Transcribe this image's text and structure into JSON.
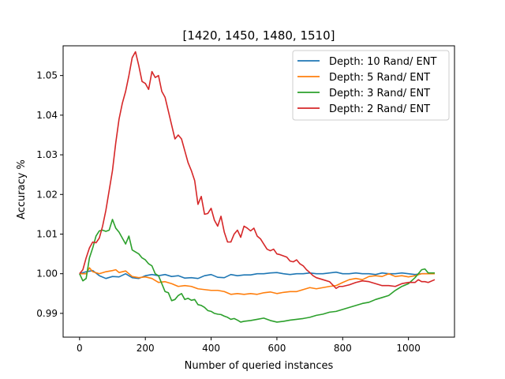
{
  "chart_data": {
    "type": "line",
    "title": "[1420, 1450, 1480, 1510]",
    "xlabel": "Number of queried instances",
    "ylabel": "Accuracy %",
    "xlim": [
      -50,
      1140
    ],
    "ylim": [
      0.984,
      1.0575
    ],
    "xticks": [
      0,
      200,
      400,
      600,
      800,
      1000
    ],
    "yticks": [
      0.99,
      1.0,
      1.01,
      1.02,
      1.03,
      1.04,
      1.05
    ],
    "ytick_labels": [
      "0.99",
      "1.00",
      "1.01",
      "1.02",
      "1.03",
      "1.04",
      "1.05"
    ],
    "grid": false,
    "legend_position": "top-right",
    "series": [
      {
        "name": "Depth: 10 Rand/ ENT",
        "color": "#1f77b4",
        "points": [
          [
            0,
            1.0
          ],
          [
            20,
            1.0005
          ],
          [
            40,
            1.0008
          ],
          [
            60,
            0.9995
          ],
          [
            80,
            0.9988
          ],
          [
            100,
            0.9993
          ],
          [
            120,
            0.9992
          ],
          [
            140,
            1.0
          ],
          [
            160,
            0.999
          ],
          [
            180,
            0.9988
          ],
          [
            200,
            0.9995
          ],
          [
            220,
            0.9998
          ],
          [
            240,
            0.9995
          ],
          [
            260,
            0.9998
          ],
          [
            280,
            0.9993
          ],
          [
            300,
            0.9995
          ],
          [
            320,
            0.9989
          ],
          [
            340,
            0.999
          ],
          [
            360,
            0.9988
          ],
          [
            380,
            0.9995
          ],
          [
            400,
            0.9998
          ],
          [
            420,
            0.9991
          ],
          [
            440,
            0.999
          ],
          [
            460,
            0.9998
          ],
          [
            480,
            0.9995
          ],
          [
            500,
            0.9997
          ],
          [
            520,
            0.9997
          ],
          [
            540,
            1.0
          ],
          [
            560,
            1.0
          ],
          [
            580,
            1.0002
          ],
          [
            600,
            1.0003
          ],
          [
            620,
            1.0
          ],
          [
            640,
            0.9998
          ],
          [
            660,
            1.0
          ],
          [
            680,
            1.0
          ],
          [
            700,
            1.0002
          ],
          [
            720,
            1.0
          ],
          [
            740,
            1.0
          ],
          [
            760,
            1.0002
          ],
          [
            780,
            1.0004
          ],
          [
            800,
            1.0
          ],
          [
            820,
            1.0
          ],
          [
            840,
            1.0002
          ],
          [
            860,
            1.0
          ],
          [
            880,
            1.0
          ],
          [
            900,
            0.9998
          ],
          [
            920,
            1.0002
          ],
          [
            940,
            1.0
          ],
          [
            960,
            1.0
          ],
          [
            980,
            1.0002
          ],
          [
            1000,
            1.0
          ],
          [
            1020,
            0.9998
          ],
          [
            1040,
            1.0
          ],
          [
            1060,
            1.0
          ],
          [
            1080,
            1.0
          ]
        ]
      },
      {
        "name": "Depth: 5 Rand/ ENT",
        "color": "#ff7f0e",
        "points": [
          [
            0,
            1.0
          ],
          [
            20,
            1.0
          ],
          [
            30,
            1.0015
          ],
          [
            40,
            1.0005
          ],
          [
            60,
            1.0
          ],
          [
            80,
            1.0005
          ],
          [
            100,
            1.0008
          ],
          [
            110,
            1.001
          ],
          [
            120,
            1.0003
          ],
          [
            140,
            1.0007
          ],
          [
            160,
            0.9993
          ],
          [
            180,
            0.999
          ],
          [
            200,
            0.9992
          ],
          [
            220,
            0.9988
          ],
          [
            240,
            0.9978
          ],
          [
            260,
            0.998
          ],
          [
            280,
            0.9975
          ],
          [
            300,
            0.9968
          ],
          [
            320,
            0.997
          ],
          [
            340,
            0.9968
          ],
          [
            360,
            0.9962
          ],
          [
            380,
            0.996
          ],
          [
            400,
            0.9958
          ],
          [
            420,
            0.9958
          ],
          [
            440,
            0.9955
          ],
          [
            460,
            0.9948
          ],
          [
            480,
            0.995
          ],
          [
            500,
            0.9948
          ],
          [
            520,
            0.995
          ],
          [
            540,
            0.9948
          ],
          [
            560,
            0.9952
          ],
          [
            580,
            0.9954
          ],
          [
            600,
            0.995
          ],
          [
            620,
            0.9953
          ],
          [
            640,
            0.9955
          ],
          [
            660,
            0.9955
          ],
          [
            680,
            0.996
          ],
          [
            700,
            0.9965
          ],
          [
            720,
            0.9962
          ],
          [
            740,
            0.9965
          ],
          [
            760,
            0.9968
          ],
          [
            780,
            0.997
          ],
          [
            800,
            0.9978
          ],
          [
            820,
            0.9985
          ],
          [
            840,
            0.9988
          ],
          [
            860,
            0.9985
          ],
          [
            880,
            0.9993
          ],
          [
            900,
            0.9995
          ],
          [
            920,
            0.9993
          ],
          [
            940,
            1.0
          ],
          [
            960,
            0.9993
          ],
          [
            980,
            0.9995
          ],
          [
            1000,
            0.9992
          ],
          [
            1020,
            0.9995
          ],
          [
            1040,
            1.0
          ],
          [
            1060,
            1.0
          ],
          [
            1080,
            1.0
          ]
        ]
      },
      {
        "name": "Depth: 3 Rand/ ENT",
        "color": "#2ca02c",
        "points": [
          [
            0,
            1.0
          ],
          [
            10,
            0.9982
          ],
          [
            20,
            0.9988
          ],
          [
            30,
            1.004
          ],
          [
            40,
            1.0065
          ],
          [
            50,
            1.0095
          ],
          [
            60,
            1.0108
          ],
          [
            70,
            1.011
          ],
          [
            80,
            1.0107
          ],
          [
            90,
            1.011
          ],
          [
            100,
            1.0137
          ],
          [
            110,
            1.0115
          ],
          [
            120,
            1.0105
          ],
          [
            130,
            1.009
          ],
          [
            140,
            1.0075
          ],
          [
            150,
            1.0095
          ],
          [
            160,
            1.006
          ],
          [
            170,
            1.0055
          ],
          [
            180,
            1.005
          ],
          [
            190,
            1.004
          ],
          [
            200,
            1.0035
          ],
          [
            210,
            1.0025
          ],
          [
            220,
            1.002
          ],
          [
            230,
            1.0
          ],
          [
            240,
            0.9995
          ],
          [
            250,
            0.9975
          ],
          [
            260,
            0.9955
          ],
          [
            270,
            0.9952
          ],
          [
            280,
            0.9932
          ],
          [
            290,
            0.9935
          ],
          [
            300,
            0.9945
          ],
          [
            310,
            0.995
          ],
          [
            320,
            0.9935
          ],
          [
            330,
            0.9938
          ],
          [
            340,
            0.9933
          ],
          [
            350,
            0.9935
          ],
          [
            360,
            0.9922
          ],
          [
            370,
            0.992
          ],
          [
            380,
            0.9915
          ],
          [
            390,
            0.9907
          ],
          [
            400,
            0.9905
          ],
          [
            410,
            0.99
          ],
          [
            420,
            0.9898
          ],
          [
            430,
            0.9897
          ],
          [
            440,
            0.9893
          ],
          [
            450,
            0.989
          ],
          [
            460,
            0.9885
          ],
          [
            470,
            0.9887
          ],
          [
            480,
            0.9883
          ],
          [
            490,
            0.9878
          ],
          [
            500,
            0.988
          ],
          [
            520,
            0.9882
          ],
          [
            540,
            0.9885
          ],
          [
            560,
            0.9888
          ],
          [
            580,
            0.9882
          ],
          [
            600,
            0.9878
          ],
          [
            620,
            0.988
          ],
          [
            640,
            0.9883
          ],
          [
            660,
            0.9885
          ],
          [
            680,
            0.9887
          ],
          [
            700,
            0.989
          ],
          [
            720,
            0.9895
          ],
          [
            740,
            0.9898
          ],
          [
            760,
            0.9903
          ],
          [
            780,
            0.9905
          ],
          [
            800,
            0.991
          ],
          [
            820,
            0.9915
          ],
          [
            840,
            0.992
          ],
          [
            860,
            0.9925
          ],
          [
            880,
            0.9928
          ],
          [
            900,
            0.9935
          ],
          [
            920,
            0.994
          ],
          [
            940,
            0.9945
          ],
          [
            960,
            0.9958
          ],
          [
            980,
            0.9968
          ],
          [
            1000,
            0.9975
          ],
          [
            1020,
            0.999
          ],
          [
            1040,
            1.001
          ],
          [
            1050,
            1.0012
          ],
          [
            1060,
            1.0002
          ],
          [
            1080,
            1.0002
          ]
        ]
      },
      {
        "name": "Depth: 2 Rand/ ENT",
        "color": "#d62728",
        "points": [
          [
            0,
            1.0
          ],
          [
            10,
            1.001
          ],
          [
            20,
            1.004
          ],
          [
            30,
            1.0065
          ],
          [
            40,
            1.008
          ],
          [
            50,
            1.0078
          ],
          [
            60,
            1.009
          ],
          [
            70,
            1.012
          ],
          [
            80,
            1.016
          ],
          [
            90,
            1.021
          ],
          [
            100,
            1.026
          ],
          [
            110,
            1.033
          ],
          [
            120,
            1.039
          ],
          [
            130,
            1.043
          ],
          [
            140,
            1.046
          ],
          [
            150,
            1.05
          ],
          [
            160,
            1.0545
          ],
          [
            170,
            1.056
          ],
          [
            180,
            1.0525
          ],
          [
            190,
            1.0485
          ],
          [
            200,
            1.048
          ],
          [
            210,
            1.0465
          ],
          [
            220,
            1.051
          ],
          [
            230,
            1.0495
          ],
          [
            240,
            1.05
          ],
          [
            250,
            1.046
          ],
          [
            260,
            1.0445
          ],
          [
            270,
            1.041
          ],
          [
            280,
            1.0375
          ],
          [
            290,
            1.034
          ],
          [
            300,
            1.035
          ],
          [
            310,
            1.034
          ],
          [
            320,
            1.031
          ],
          [
            330,
            1.028
          ],
          [
            340,
            1.026
          ],
          [
            350,
            1.0235
          ],
          [
            360,
            1.0175
          ],
          [
            370,
            1.0195
          ],
          [
            380,
            1.015
          ],
          [
            390,
            1.0152
          ],
          [
            400,
            1.0165
          ],
          [
            410,
            1.0135
          ],
          [
            420,
            1.012
          ],
          [
            430,
            1.0145
          ],
          [
            440,
            1.0105
          ],
          [
            450,
            1.008
          ],
          [
            460,
            1.008
          ],
          [
            470,
            1.01
          ],
          [
            480,
            1.011
          ],
          [
            490,
            1.0092
          ],
          [
            500,
            1.012
          ],
          [
            510,
            1.0115
          ],
          [
            520,
            1.0108
          ],
          [
            530,
            1.0115
          ],
          [
            540,
            1.0095
          ],
          [
            550,
            1.0088
          ],
          [
            560,
            1.0075
          ],
          [
            570,
            1.0062
          ],
          [
            580,
            1.0058
          ],
          [
            590,
            1.0062
          ],
          [
            600,
            1.005
          ],
          [
            610,
            1.0048
          ],
          [
            620,
            1.0045
          ],
          [
            630,
            1.0042
          ],
          [
            640,
            1.0032
          ],
          [
            650,
            1.003
          ],
          [
            660,
            1.0035
          ],
          [
            670,
            1.0025
          ],
          [
            680,
            1.002
          ],
          [
            690,
            1.001
          ],
          [
            700,
            1.0003
          ],
          [
            710,
            0.9995
          ],
          [
            720,
            0.999
          ],
          [
            740,
            0.9985
          ],
          [
            760,
            0.998
          ],
          [
            780,
            0.9963
          ],
          [
            790,
            0.9968
          ],
          [
            800,
            0.9968
          ],
          [
            820,
            0.9972
          ],
          [
            840,
            0.9978
          ],
          [
            860,
            0.9982
          ],
          [
            880,
            0.998
          ],
          [
            900,
            0.9975
          ],
          [
            920,
            0.997
          ],
          [
            940,
            0.997
          ],
          [
            960,
            0.9968
          ],
          [
            980,
            0.9975
          ],
          [
            1000,
            0.9978
          ],
          [
            1020,
            0.9978
          ],
          [
            1030,
            0.9985
          ],
          [
            1040,
            0.998
          ],
          [
            1050,
            0.998
          ],
          [
            1060,
            0.9978
          ],
          [
            1080,
            0.9985
          ]
        ]
      }
    ]
  }
}
